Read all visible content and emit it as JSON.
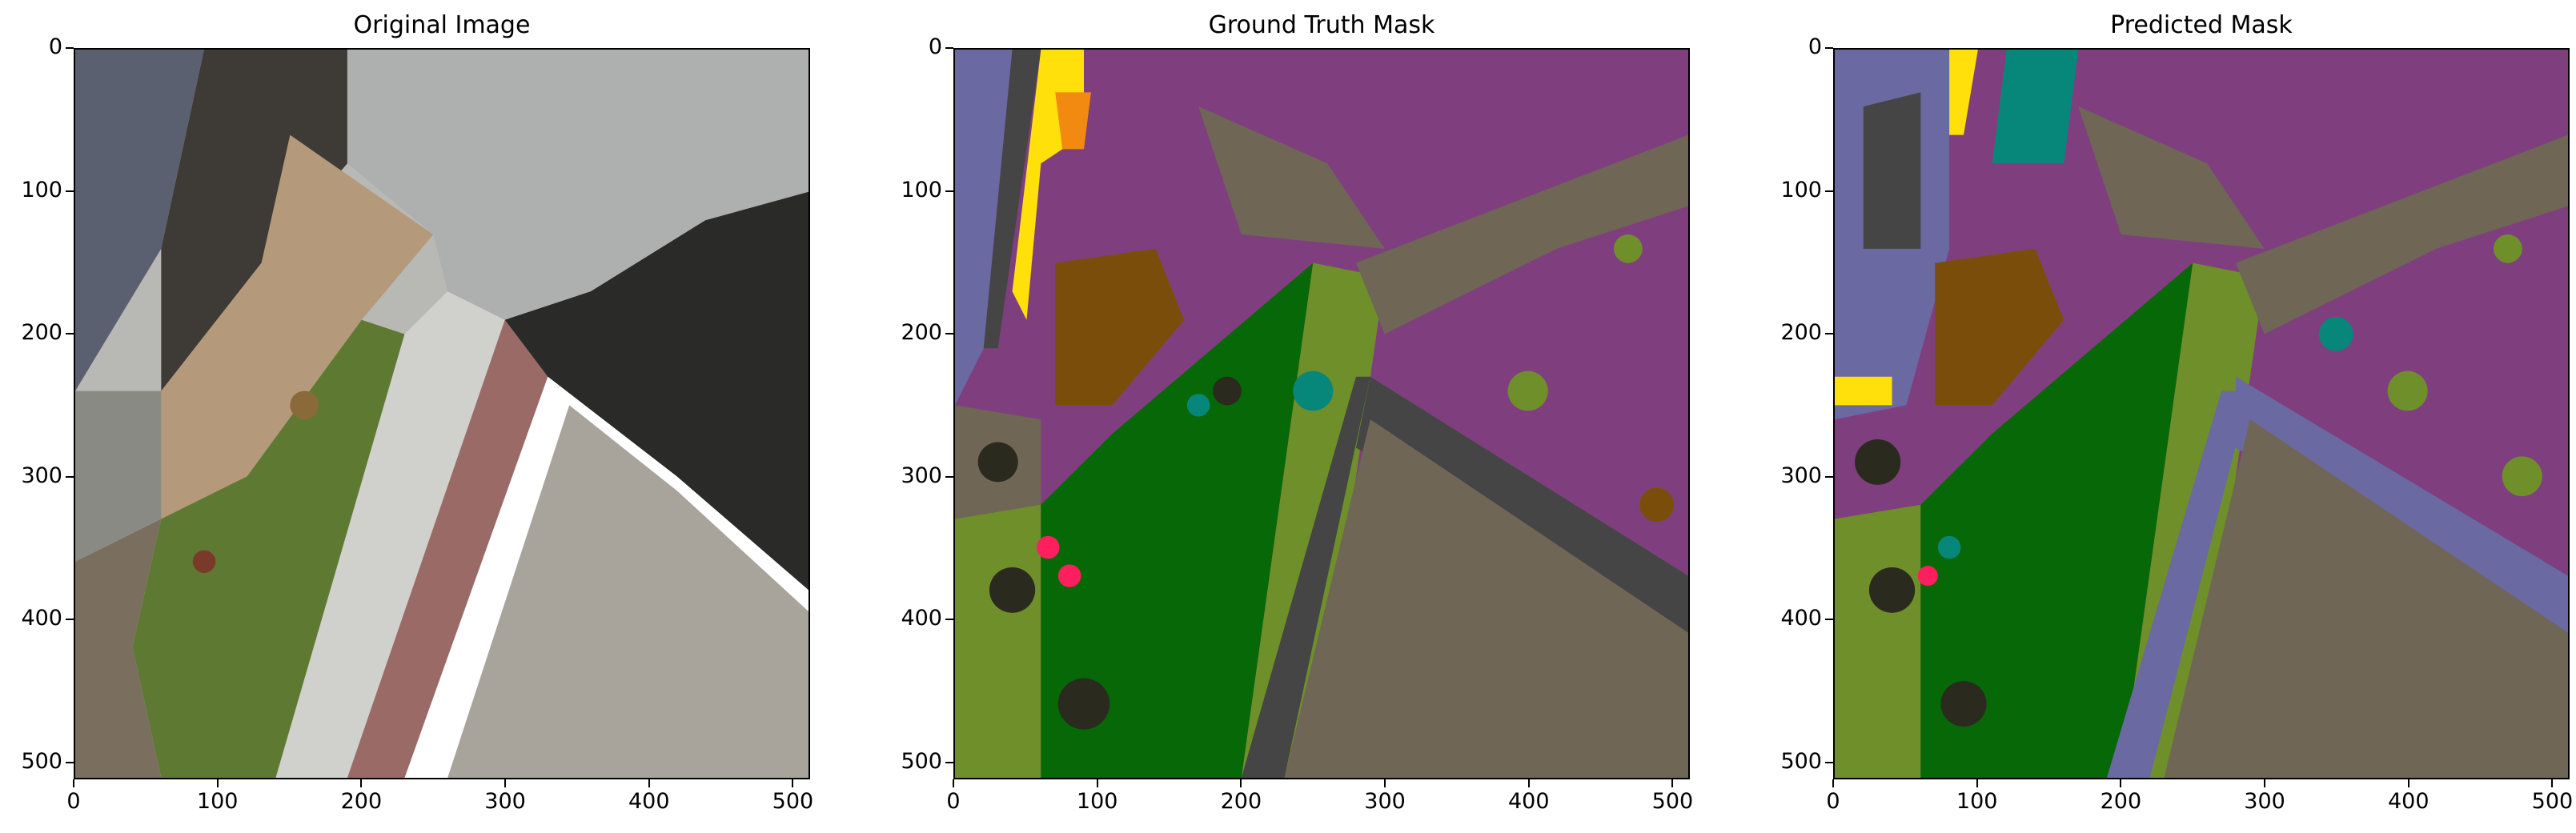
{
  "panels": [
    {
      "title": "Original Image",
      "xticks": [
        "0",
        "100",
        "200",
        "300",
        "400",
        "500"
      ],
      "yticks": [
        "0",
        "100",
        "200",
        "300",
        "400",
        "500"
      ]
    },
    {
      "title": "Ground Truth Mask",
      "xticks": [
        "0",
        "100",
        "200",
        "300",
        "400",
        "500"
      ],
      "yticks": [
        "0",
        "100",
        "200",
        "300",
        "400",
        "500"
      ]
    },
    {
      "title": "Predicted Mask",
      "xticks": [
        "0",
        "100",
        "200",
        "300",
        "400",
        "500"
      ],
      "yticks": [
        "0",
        "100",
        "200",
        "300",
        "400",
        "500"
      ]
    }
  ],
  "colors": {
    "background_purple": "#7f3f7f",
    "grass_green": "#066806",
    "roof_brown": "#6f6656",
    "slate_blue": "#6a69a1",
    "tree_olive": "#6f8f2a",
    "teal": "#06877a",
    "yellow": "#ffe00a",
    "orange": "#f28a12",
    "dark_gray": "#454545",
    "dark_earth": "#2a2a1f",
    "brown": "#7a4e0a",
    "pink": "#ff1f5f"
  }
}
